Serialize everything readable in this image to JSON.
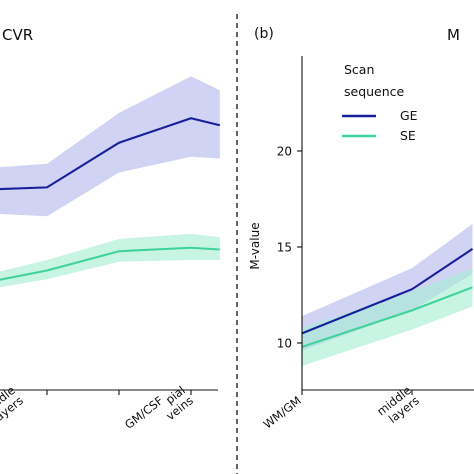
{
  "colors": {
    "ge_line": "#17209a",
    "ge_band": "#b3b6ec",
    "se_line": "#3fd39c",
    "se_band": "#a4ecd2",
    "axis": "#111111",
    "divider": "#111111"
  },
  "chart_data": [
    {
      "type": "line",
      "panel_label": "",
      "title": "CVR",
      "xlabel": "",
      "ylabel": "",
      "categories": [
        "",
        "middle layers",
        "GM/CSF",
        "pial veins"
      ],
      "series": [
        {
          "name": "GE",
          "points": [
            [
              0,
              2.4
            ],
            [
              1,
              2.55
            ],
            [
              2,
              5.1
            ],
            [
              3,
              6.5
            ],
            [
              3.4,
              6.1
            ]
          ],
          "band_upper": [
            [
              0,
              3.6
            ],
            [
              1,
              3.9
            ],
            [
              2,
              6.8
            ],
            [
              3,
              8.9
            ],
            [
              3.4,
              8.1
            ]
          ],
          "band_lower": [
            [
              0,
              1.1
            ],
            [
              1,
              0.9
            ],
            [
              2,
              3.4
            ],
            [
              3,
              4.3
            ],
            [
              3.4,
              4.2
            ]
          ]
        },
        {
          "name": "SE",
          "points": [
            [
              0,
              -3.0
            ],
            [
              1,
              -2.2
            ],
            [
              2,
              -1.1
            ],
            [
              3,
              -0.9
            ],
            [
              3.4,
              -1.0
            ]
          ],
          "band_upper": [
            [
              0,
              -2.6
            ],
            [
              1,
              -1.6
            ],
            [
              2,
              -0.4
            ],
            [
              3,
              -0.1
            ],
            [
              3.4,
              -0.3
            ]
          ],
          "band_lower": [
            [
              0,
              -3.4
            ],
            [
              1,
              -2.7
            ],
            [
              2,
              -1.7
            ],
            [
              3,
              -1.6
            ],
            [
              3.4,
              -1.6
            ]
          ]
        }
      ]
    },
    {
      "type": "line",
      "panel_label": "(b)",
      "title": "M",
      "xlabel": "",
      "ylabel": "M-value",
      "yticks": [
        10,
        15,
        20
      ],
      "ylim": [
        8,
        25
      ],
      "categories": [
        "WM/GM",
        "middle layers"
      ],
      "legend": {
        "title": "Scan sequence",
        "placement": "top-right",
        "entries": [
          "GE",
          "SE"
        ]
      },
      "series": [
        {
          "name": "GE",
          "points": [
            [
              0,
              10.5
            ],
            [
              1,
              12.8
            ],
            [
              1.55,
              14.9
            ]
          ],
          "band_upper": [
            [
              0,
              11.4
            ],
            [
              1,
              13.9
            ],
            [
              1.55,
              16.2
            ]
          ],
          "band_lower": [
            [
              0,
              9.6
            ],
            [
              1,
              11.7
            ],
            [
              1.55,
              13.6
            ]
          ]
        },
        {
          "name": "SE",
          "points": [
            [
              0,
              9.8
            ],
            [
              1,
              11.7
            ],
            [
              1.55,
              12.9
            ]
          ],
          "band_upper": [
            [
              0,
              10.8
            ],
            [
              1,
              12.7
            ],
            [
              1.55,
              13.9
            ]
          ],
          "band_lower": [
            [
              0,
              8.8
            ],
            [
              1,
              10.7
            ],
            [
              1.55,
              11.9
            ]
          ]
        }
      ]
    }
  ]
}
